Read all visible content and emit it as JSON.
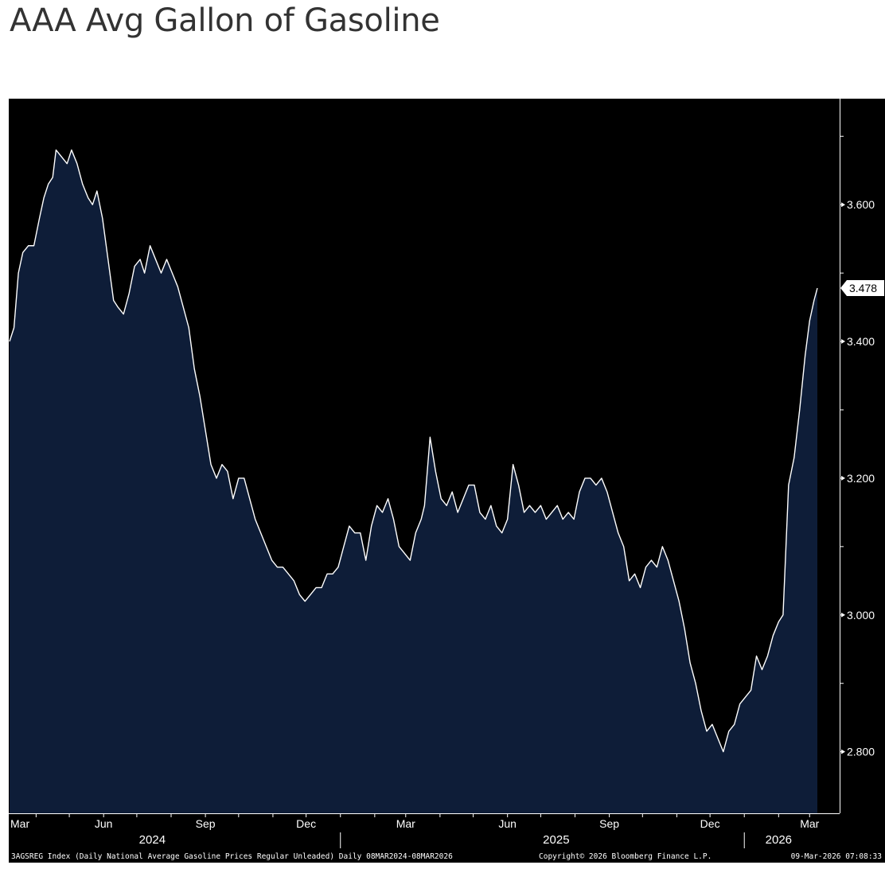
{
  "title": "AAA Avg Gallon of Gasoline",
  "colors": {
    "background": "#000000",
    "area_fill": "#0e1d38",
    "line": "#ffffff",
    "axis": "#ffffff",
    "last_value_bg": "#ffffff",
    "last_value_text": "#000000"
  },
  "footer": {
    "left": "3AGSREG Index (Daily National Average Gasoline Prices Regular Unleaded) Daily 08MAR2024-08MAR2026",
    "center": "Copyright© 2026 Bloomberg Finance L.P.",
    "right": "09-Mar-2026 07:08:33"
  },
  "chart_data": {
    "type": "area",
    "title": "AAA Avg Gallon of Gasoline",
    "xlabel": "",
    "ylabel": "",
    "x_range": [
      "2024-03-08",
      "2026-03-08"
    ],
    "ylim": [
      2.71,
      3.755
    ],
    "y_ticks": [
      2.8,
      3.0,
      3.2,
      3.4,
      3.6
    ],
    "y_tick_labels": [
      "2.800",
      "3.000",
      "3.200",
      "3.400",
      "3.600"
    ],
    "x_ticks": [
      {
        "date": "2024-03-01",
        "label": "Mar"
      },
      {
        "date": "2024-06-01",
        "label": "Jun"
      },
      {
        "date": "2024-09-01",
        "label": "Sep"
      },
      {
        "date": "2024-12-01",
        "label": "Dec"
      },
      {
        "date": "2025-03-01",
        "label": "Mar"
      },
      {
        "date": "2025-06-01",
        "label": "Jun"
      },
      {
        "date": "2025-09-01",
        "label": "Sep"
      },
      {
        "date": "2025-12-01",
        "label": "Dec"
      },
      {
        "date": "2026-03-01",
        "label": "Mar"
      }
    ],
    "year_labels": [
      {
        "date": "2024-07-15",
        "label": "2024"
      },
      {
        "date": "2025-07-15",
        "label": "2025"
      },
      {
        "date": "2026-02-01",
        "label": "2026"
      }
    ],
    "year_dividers": [
      "2025-01-01",
      "2026-01-01"
    ],
    "last_value": 3.478,
    "last_value_label": "3.478",
    "grid": false,
    "legend": "none",
    "series": [
      {
        "points": [
          [
            "2024-03-08",
            3.4
          ],
          [
            "2024-03-12",
            3.42
          ],
          [
            "2024-03-16",
            3.5
          ],
          [
            "2024-03-20",
            3.53
          ],
          [
            "2024-03-25",
            3.54
          ],
          [
            "2024-03-30",
            3.54
          ],
          [
            "2024-04-04",
            3.58
          ],
          [
            "2024-04-08",
            3.61
          ],
          [
            "2024-04-12",
            3.63
          ],
          [
            "2024-04-16",
            3.64
          ],
          [
            "2024-04-19",
            3.68
          ],
          [
            "2024-04-24",
            3.67
          ],
          [
            "2024-04-29",
            3.66
          ],
          [
            "2024-05-03",
            3.68
          ],
          [
            "2024-05-08",
            3.66
          ],
          [
            "2024-05-13",
            3.63
          ],
          [
            "2024-05-18",
            3.61
          ],
          [
            "2024-05-22",
            3.6
          ],
          [
            "2024-05-26",
            3.62
          ],
          [
            "2024-05-31",
            3.58
          ],
          [
            "2024-06-05",
            3.52
          ],
          [
            "2024-06-10",
            3.46
          ],
          [
            "2024-06-14",
            3.45
          ],
          [
            "2024-06-19",
            3.44
          ],
          [
            "2024-06-24",
            3.47
          ],
          [
            "2024-06-29",
            3.51
          ],
          [
            "2024-07-04",
            3.52
          ],
          [
            "2024-07-08",
            3.5
          ],
          [
            "2024-07-13",
            3.54
          ],
          [
            "2024-07-18",
            3.52
          ],
          [
            "2024-07-23",
            3.5
          ],
          [
            "2024-07-28",
            3.52
          ],
          [
            "2024-08-02",
            3.5
          ],
          [
            "2024-08-07",
            3.48
          ],
          [
            "2024-08-12",
            3.45
          ],
          [
            "2024-08-17",
            3.42
          ],
          [
            "2024-08-22",
            3.36
          ],
          [
            "2024-08-27",
            3.32
          ],
          [
            "2024-09-01",
            3.27
          ],
          [
            "2024-09-06",
            3.22
          ],
          [
            "2024-09-11",
            3.2
          ],
          [
            "2024-09-16",
            3.22
          ],
          [
            "2024-09-21",
            3.21
          ],
          [
            "2024-09-26",
            3.17
          ],
          [
            "2024-10-01",
            3.2
          ],
          [
            "2024-10-06",
            3.2
          ],
          [
            "2024-10-11",
            3.17
          ],
          [
            "2024-10-16",
            3.14
          ],
          [
            "2024-10-21",
            3.12
          ],
          [
            "2024-10-26",
            3.1
          ],
          [
            "2024-10-31",
            3.08
          ],
          [
            "2024-11-05",
            3.07
          ],
          [
            "2024-11-10",
            3.07
          ],
          [
            "2024-11-15",
            3.06
          ],
          [
            "2024-11-20",
            3.05
          ],
          [
            "2024-11-25",
            3.03
          ],
          [
            "2024-11-30",
            3.02
          ],
          [
            "2024-12-05",
            3.03
          ],
          [
            "2024-12-10",
            3.04
          ],
          [
            "2024-12-15",
            3.04
          ],
          [
            "2024-12-20",
            3.06
          ],
          [
            "2024-12-25",
            3.06
          ],
          [
            "2024-12-30",
            3.07
          ],
          [
            "2025-01-04",
            3.1
          ],
          [
            "2025-01-09",
            3.13
          ],
          [
            "2025-01-14",
            3.12
          ],
          [
            "2025-01-19",
            3.12
          ],
          [
            "2025-01-24",
            3.08
          ],
          [
            "2025-01-29",
            3.13
          ],
          [
            "2025-02-03",
            3.16
          ],
          [
            "2025-02-08",
            3.15
          ],
          [
            "2025-02-13",
            3.17
          ],
          [
            "2025-02-18",
            3.14
          ],
          [
            "2025-02-23",
            3.1
          ],
          [
            "2025-02-28",
            3.09
          ],
          [
            "2025-03-05",
            3.08
          ],
          [
            "2025-03-10",
            3.12
          ],
          [
            "2025-03-15",
            3.14
          ],
          [
            "2025-03-18",
            3.16
          ],
          [
            "2025-03-23",
            3.26
          ],
          [
            "2025-03-28",
            3.21
          ],
          [
            "2025-04-02",
            3.17
          ],
          [
            "2025-04-07",
            3.16
          ],
          [
            "2025-04-12",
            3.18
          ],
          [
            "2025-04-17",
            3.15
          ],
          [
            "2025-04-22",
            3.17
          ],
          [
            "2025-04-27",
            3.19
          ],
          [
            "2025-05-02",
            3.19
          ],
          [
            "2025-05-07",
            3.15
          ],
          [
            "2025-05-12",
            3.14
          ],
          [
            "2025-05-17",
            3.16
          ],
          [
            "2025-05-22",
            3.13
          ],
          [
            "2025-05-27",
            3.12
          ],
          [
            "2025-06-01",
            3.14
          ],
          [
            "2025-06-06",
            3.22
          ],
          [
            "2025-06-11",
            3.19
          ],
          [
            "2025-06-16",
            3.15
          ],
          [
            "2025-06-21",
            3.16
          ],
          [
            "2025-06-26",
            3.15
          ],
          [
            "2025-07-01",
            3.16
          ],
          [
            "2025-07-06",
            3.14
          ],
          [
            "2025-07-11",
            3.15
          ],
          [
            "2025-07-16",
            3.16
          ],
          [
            "2025-07-21",
            3.14
          ],
          [
            "2025-07-26",
            3.15
          ],
          [
            "2025-07-31",
            3.14
          ],
          [
            "2025-08-05",
            3.18
          ],
          [
            "2025-08-10",
            3.2
          ],
          [
            "2025-08-15",
            3.2
          ],
          [
            "2025-08-20",
            3.19
          ],
          [
            "2025-08-25",
            3.2
          ],
          [
            "2025-08-30",
            3.18
          ],
          [
            "2025-09-04",
            3.15
          ],
          [
            "2025-09-09",
            3.12
          ],
          [
            "2025-09-14",
            3.1
          ],
          [
            "2025-09-19",
            3.05
          ],
          [
            "2025-09-24",
            3.06
          ],
          [
            "2025-09-29",
            3.04
          ],
          [
            "2025-10-04",
            3.07
          ],
          [
            "2025-10-09",
            3.08
          ],
          [
            "2025-10-14",
            3.07
          ],
          [
            "2025-10-19",
            3.1
          ],
          [
            "2025-10-24",
            3.08
          ],
          [
            "2025-10-29",
            3.05
          ],
          [
            "2025-11-03",
            3.02
          ],
          [
            "2025-11-08",
            2.98
          ],
          [
            "2025-11-13",
            2.93
          ],
          [
            "2025-11-18",
            2.9
          ],
          [
            "2025-11-23",
            2.86
          ],
          [
            "2025-11-28",
            2.83
          ],
          [
            "2025-12-03",
            2.84
          ],
          [
            "2025-12-08",
            2.82
          ],
          [
            "2025-12-13",
            2.8
          ],
          [
            "2025-12-18",
            2.83
          ],
          [
            "2025-12-23",
            2.84
          ],
          [
            "2025-12-28",
            2.87
          ],
          [
            "2026-01-02",
            2.88
          ],
          [
            "2026-01-07",
            2.89
          ],
          [
            "2026-01-12",
            2.94
          ],
          [
            "2026-01-17",
            2.92
          ],
          [
            "2026-01-22",
            2.94
          ],
          [
            "2026-01-27",
            2.97
          ],
          [
            "2026-02-01",
            2.99
          ],
          [
            "2026-02-05",
            3.0
          ],
          [
            "2026-02-10",
            3.19
          ],
          [
            "2026-02-15",
            3.23
          ],
          [
            "2026-02-20",
            3.3
          ],
          [
            "2026-02-25",
            3.38
          ],
          [
            "2026-03-01",
            3.43
          ],
          [
            "2026-03-05",
            3.46
          ],
          [
            "2026-03-08",
            3.478
          ]
        ]
      }
    ]
  }
}
